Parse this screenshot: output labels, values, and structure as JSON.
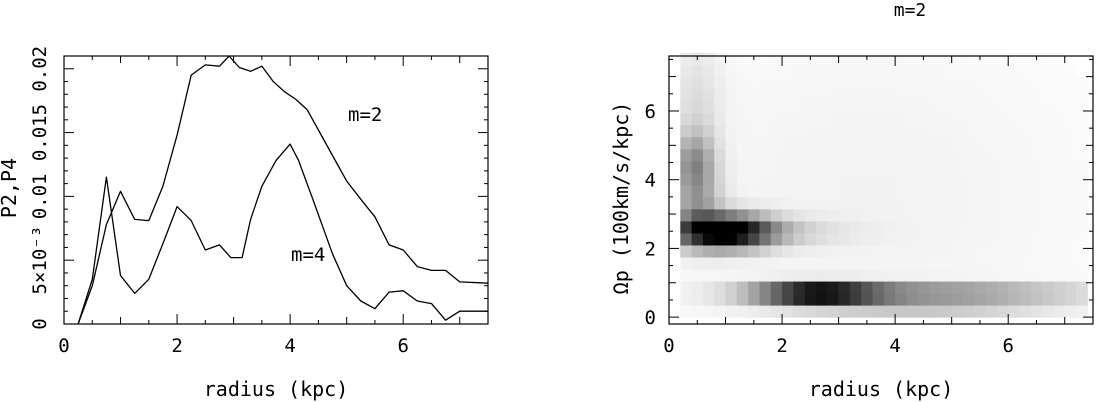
{
  "chart_data": [
    {
      "type": "line",
      "title": "",
      "xlabel": "radius (kpc)",
      "ylabel": "P2,P4",
      "xlim": [
        0,
        7.5
      ],
      "ylim": [
        0,
        0.021
      ],
      "xticks": [
        "0",
        "2",
        "4",
        "6"
      ],
      "yticks": [
        "0",
        "5×10⁻³",
        "0.01",
        "0.015",
        "0.02"
      ],
      "ytick_values": [
        0,
        0.005,
        0.01,
        0.015,
        0.02
      ],
      "xtick_values": [
        0,
        2,
        4,
        6
      ],
      "annotations": [
        "m=2",
        "m=4"
      ],
      "series": [
        {
          "name": "m=2",
          "x": [
            0.25,
            0.5,
            0.75,
            1.0,
            1.25,
            1.5,
            1.75,
            2.0,
            2.25,
            2.5,
            2.75,
            2.92,
            3.1,
            3.3,
            3.5,
            3.7,
            3.9,
            4.1,
            4.3,
            4.5,
            4.75,
            5.0,
            5.3,
            5.5,
            5.75,
            6.0,
            6.25,
            6.5,
            6.75,
            7.0,
            7.5
          ],
          "y": [
            0.0,
            0.003,
            0.0078,
            0.0104,
            0.0082,
            0.0081,
            0.0108,
            0.0148,
            0.0195,
            0.0203,
            0.0202,
            0.021,
            0.0201,
            0.0198,
            0.0202,
            0.019,
            0.0182,
            0.0176,
            0.0168,
            0.0152,
            0.0132,
            0.0112,
            0.0095,
            0.0084,
            0.0062,
            0.0058,
            0.0045,
            0.0042,
            0.0042,
            0.0033,
            0.0032
          ]
        },
        {
          "name": "m=4",
          "x": [
            0.25,
            0.5,
            0.75,
            1.0,
            1.25,
            1.5,
            1.75,
            2.0,
            2.25,
            2.5,
            2.75,
            2.95,
            3.15,
            3.3,
            3.5,
            3.75,
            4.0,
            4.15,
            4.4,
            4.75,
            5.0,
            5.25,
            5.5,
            5.75,
            6.0,
            6.25,
            6.5,
            6.75,
            7.0,
            7.25,
            7.5
          ],
          "y": [
            0.0,
            0.0035,
            0.0115,
            0.0038,
            0.0024,
            0.0035,
            0.0063,
            0.0092,
            0.0081,
            0.0058,
            0.0062,
            0.0052,
            0.0052,
            0.0082,
            0.0108,
            0.0128,
            0.0141,
            0.0128,
            0.0098,
            0.0055,
            0.003,
            0.0018,
            0.0012,
            0.0025,
            0.0026,
            0.0018,
            0.0016,
            0.0003,
            0.001,
            0.001,
            0.001
          ]
        }
      ]
    },
    {
      "type": "heatmap",
      "title": "m=2",
      "xlabel": "radius (kpc)",
      "ylabel": "Ωp (100km/s/kpc)",
      "xlim": [
        0,
        7.5
      ],
      "ylim": [
        -0.2,
        7.6
      ],
      "xticks": [
        "0",
        "2",
        "4",
        "6"
      ],
      "yticks": [
        "0",
        "2",
        "4",
        "6"
      ],
      "xtick_values": [
        0,
        2,
        4,
        6
      ],
      "ytick_values": [
        0,
        2,
        4,
        6
      ],
      "cell_size_data": [
        0.2,
        0.35
      ],
      "x_range_data": [
        0.2,
        7.3
      ],
      "y_range_data": [
        0.0,
        7.7
      ],
      "blobs": [
        {
          "cx": 1.0,
          "cy": 2.5,
          "sx": 0.55,
          "sy": 0.35,
          "amp": 0.95
        },
        {
          "cx": 1.2,
          "cy": 2.5,
          "sx": 1.1,
          "sy": 0.28,
          "amp": 0.25
        },
        {
          "cx": 2.6,
          "cy": 0.7,
          "sx": 0.75,
          "sy": 0.2,
          "amp": 1.0
        },
        {
          "cx": 4.6,
          "cy": 0.7,
          "sx": 1.9,
          "sy": 0.18,
          "amp": 0.55
        },
        {
          "cx": 4.5,
          "cy": 0.2,
          "sx": 1.6,
          "sy": 0.15,
          "amp": 0.18
        },
        {
          "cx": 0.45,
          "cy": 4.5,
          "sx": 0.25,
          "sy": 0.6,
          "amp": 0.35
        },
        {
          "cx": 0.5,
          "cy": 3.2,
          "sx": 0.3,
          "sy": 0.7,
          "amp": 0.3
        },
        {
          "cx": 0.5,
          "cy": 6.0,
          "sx": 0.3,
          "sy": 1.4,
          "amp": 0.12
        },
        {
          "cx": 3.5,
          "cy": 3.5,
          "sx": 3.0,
          "sy": 4.0,
          "amp": 0.05
        }
      ]
    }
  ]
}
